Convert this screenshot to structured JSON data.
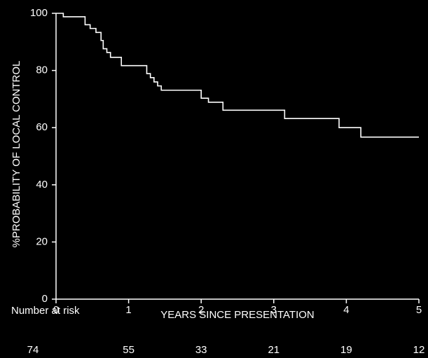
{
  "chart_data": {
    "type": "step",
    "xlabel": "YEARS SINCE PRESENTATION",
    "ylabel": "%PROBABILITY OF LOCAL CONTROL",
    "x": [
      0,
      0.1,
      0.4,
      0.47,
      0.55,
      0.62,
      0.65,
      0.7,
      0.75,
      0.9,
      1.25,
      1.3,
      1.35,
      1.4,
      1.45,
      2.0,
      2.1,
      2.3,
      3.15,
      3.9,
      4.2,
      5.0
    ],
    "values": [
      100,
      98.8,
      96,
      94.7,
      93.3,
      90.5,
      87.6,
      86.3,
      84.6,
      81.7,
      78.9,
      77.5,
      76,
      74.6,
      73.1,
      70.3,
      68.9,
      66.1,
      63.2,
      60,
      56.7,
      56.7
    ],
    "color": "#ffffff",
    "xlim": [
      0,
      5
    ],
    "xticks": [
      0,
      1,
      2,
      3,
      4,
      5
    ],
    "ylim": [
      0,
      100
    ],
    "yticks": [
      0,
      20,
      40,
      60,
      80,
      100
    ],
    "risk_table": {
      "label": "Number at risk",
      "values": [
        74,
        55,
        33,
        21,
        19,
        12
      ]
    }
  }
}
